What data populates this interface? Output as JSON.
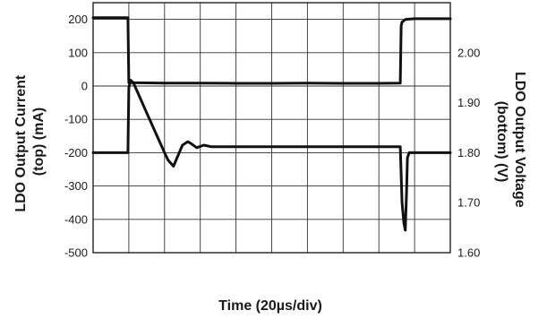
{
  "chart_data": {
    "type": "line",
    "title": "",
    "xlabel": "Time (20µs/div)",
    "ylabel_left": [
      "LDO Output Current",
      "(top) (mA)"
    ],
    "ylabel_right": [
      "LDO Output Voltage",
      "(bottom) (V)"
    ],
    "x_divisions": 10,
    "x_unit": "µs",
    "x_per_division": 20,
    "xlim": [
      0,
      200
    ],
    "left_axis": {
      "ylim": [
        -500,
        250
      ],
      "ticks": [
        "200",
        "100",
        "0",
        "-100",
        "-200",
        "-300",
        "-400",
        "-500"
      ],
      "tick_values": [
        200,
        100,
        0,
        -100,
        -200,
        -300,
        -400,
        -500
      ]
    },
    "right_axis": {
      "ylim": [
        1.6,
        2.1
      ],
      "ticks": [
        "2.00",
        "1.90",
        "1.80",
        "1.70",
        "1.60"
      ],
      "tick_values": [
        2.0,
        1.9,
        1.8,
        1.7,
        1.6
      ]
    },
    "grid": true,
    "series": [
      {
        "axis": "left",
        "x": [
          0,
          19.5,
          20,
          40,
          60,
          80,
          100,
          120,
          140,
          160,
          172,
          172.5,
          173,
          175,
          180,
          200
        ],
        "y": [
          205,
          205,
          10,
          9,
          9,
          8,
          8,
          9,
          8,
          8,
          9,
          180,
          192,
          200,
          202,
          202
        ]
      },
      {
        "axis": "right",
        "x": [
          0,
          19.5,
          20,
          21,
          22.5,
          25,
          30,
          35,
          40,
          42,
          45,
          47,
          50,
          53,
          55,
          58,
          62,
          66,
          70,
          80,
          100,
          120,
          140,
          160,
          172,
          173,
          174,
          174.8,
          175.5,
          176,
          177,
          178,
          180,
          190,
          200
        ],
        "y": [
          1.8,
          1.8,
          1.93,
          1.945,
          1.94,
          1.92,
          1.88,
          1.84,
          1.8,
          1.785,
          1.773,
          1.79,
          1.815,
          1.822,
          1.818,
          1.81,
          1.815,
          1.812,
          1.812,
          1.812,
          1.812,
          1.812,
          1.812,
          1.812,
          1.812,
          1.7,
          1.66,
          1.645,
          1.72,
          1.79,
          1.8,
          1.8,
          1.8,
          1.8,
          1.8
        ]
      }
    ]
  }
}
